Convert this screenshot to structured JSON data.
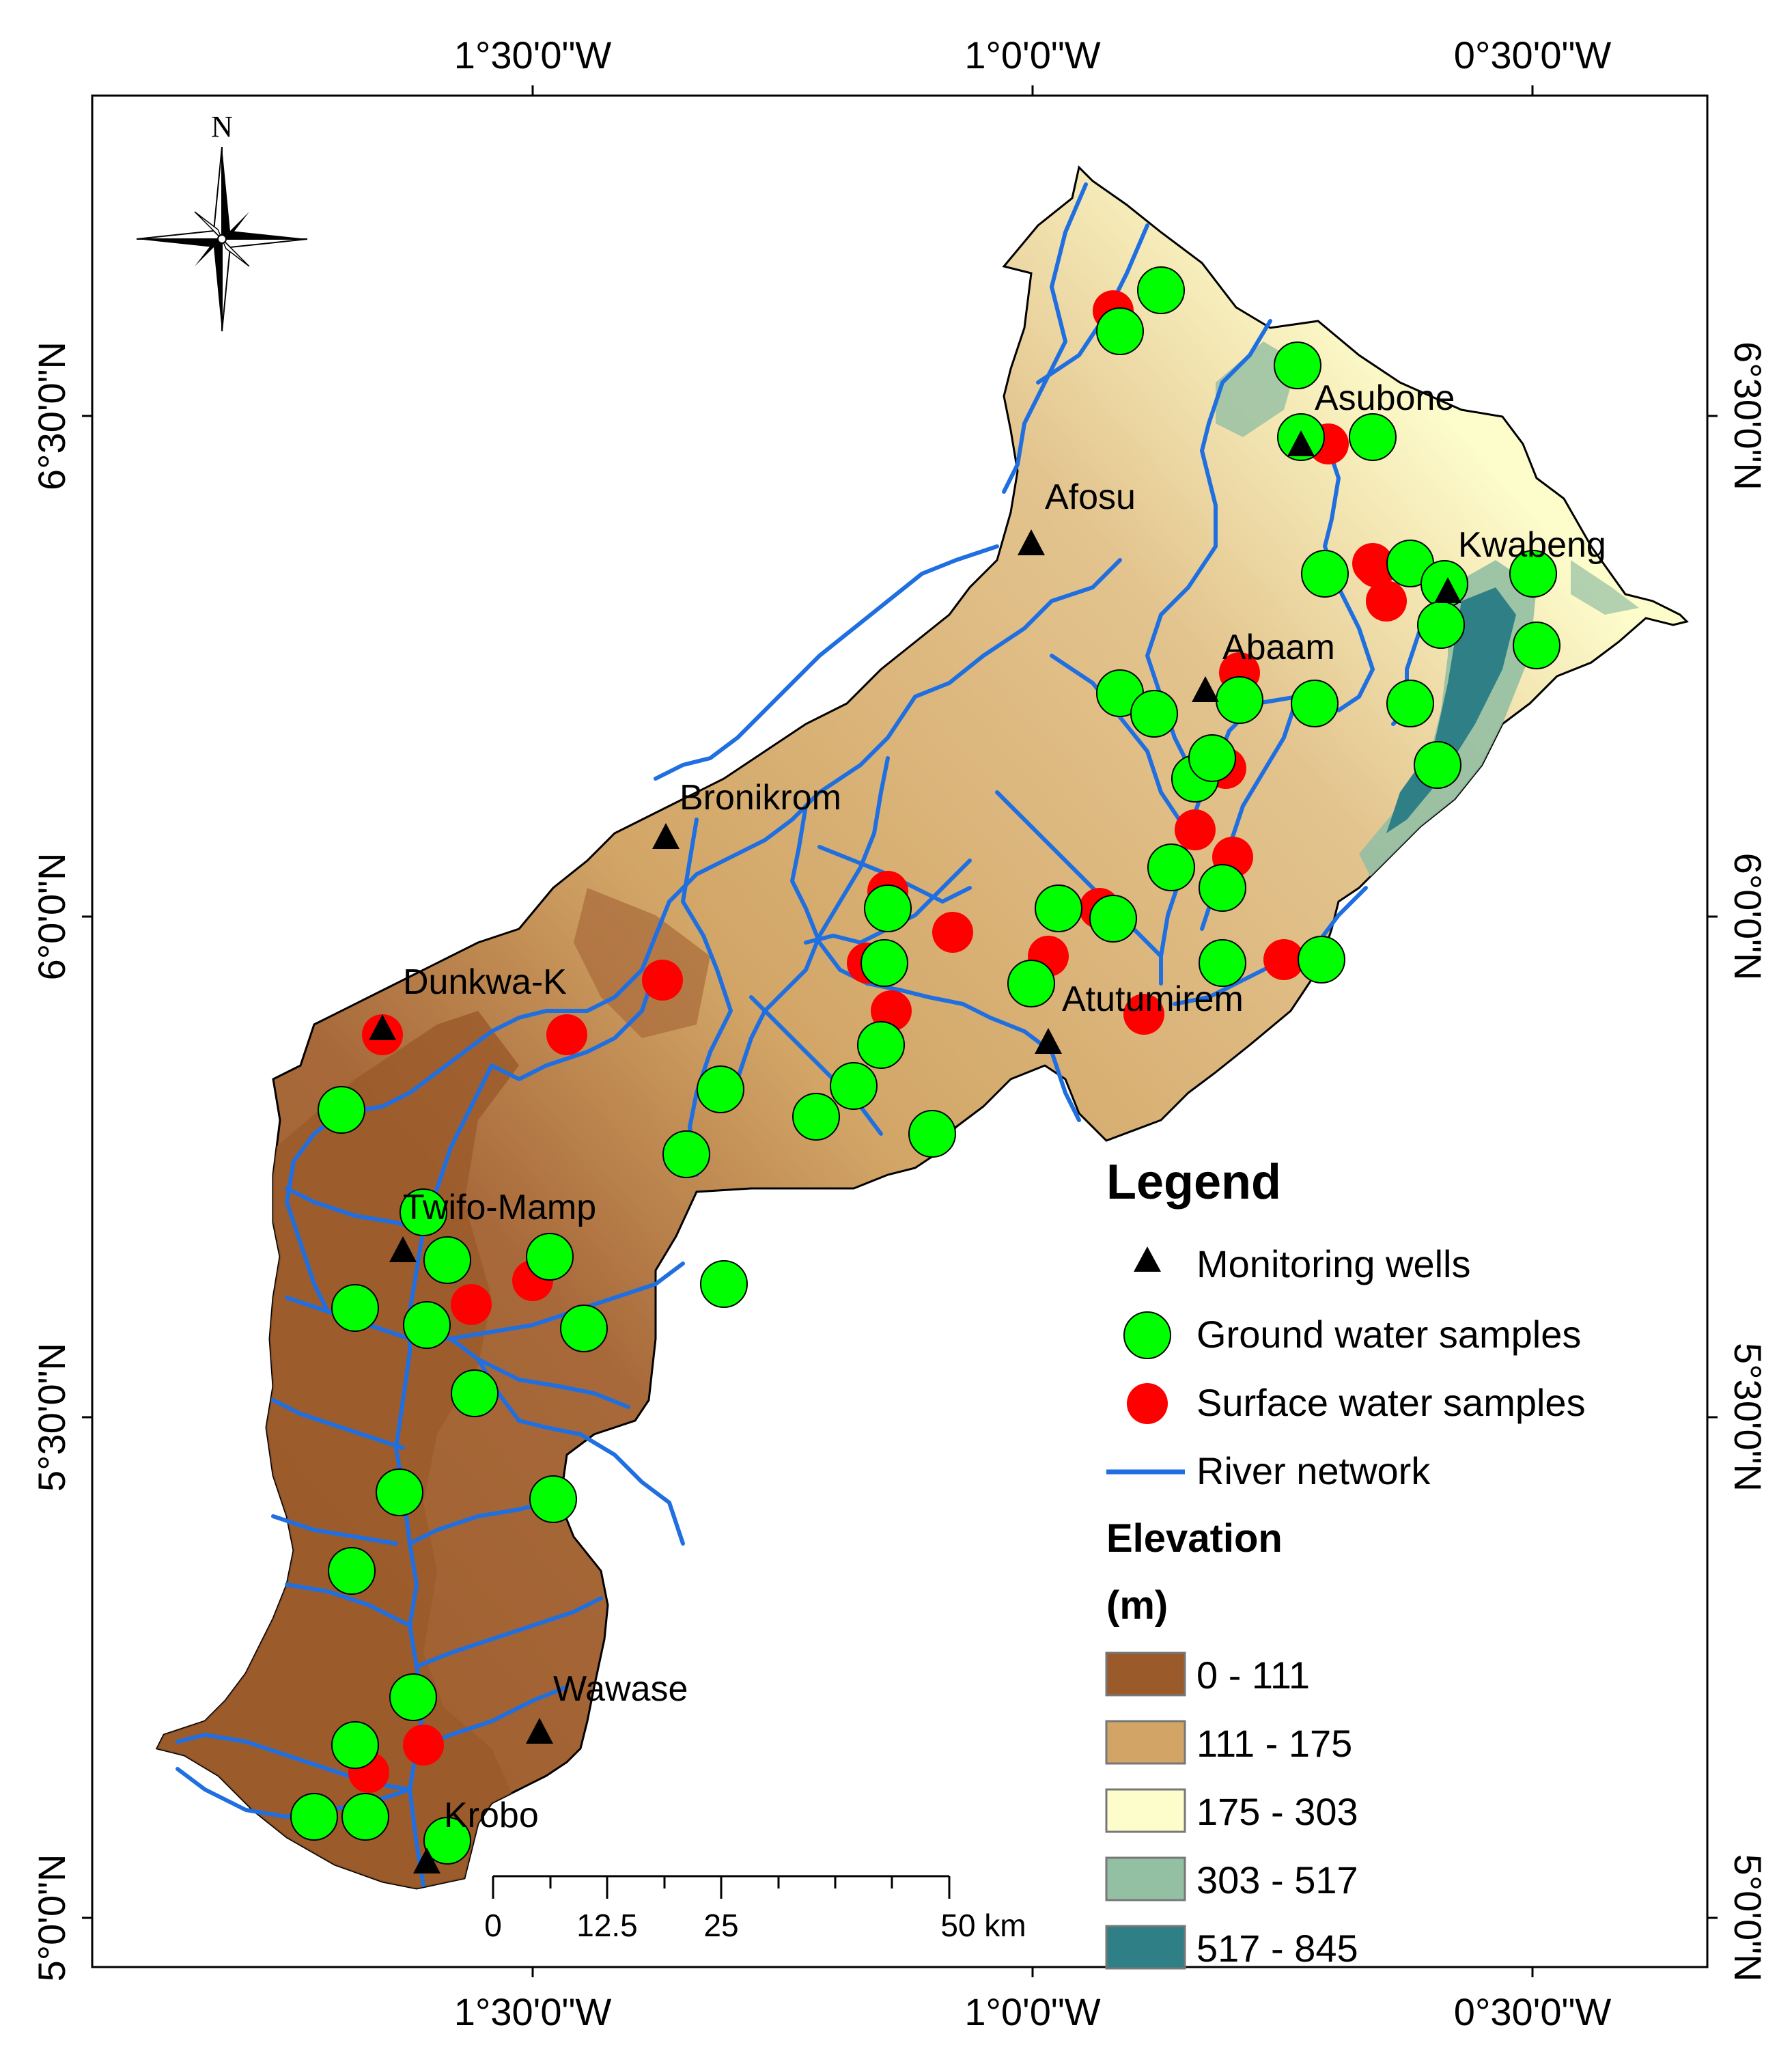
{
  "axes": {
    "top_ticks": [
      "1°30'0\"W",
      "1°0'0\"W",
      "0°30'0\"W"
    ],
    "bottom_ticks": [
      "1°30'0\"W",
      "1°0'0\"W",
      "0°30'0\"W"
    ],
    "left_ticks": [
      "6°30'0\"N",
      "6°0'0\"N",
      "5°30'0\"N",
      "5°0'0\"N"
    ],
    "right_ticks": [
      "6°30'0\"N",
      "6°0'0\"N",
      "5°30'0\"N",
      "5°0'0\"N"
    ]
  },
  "north_arrow": {
    "label": "N",
    "icon": "compass-rose-icon"
  },
  "places": [
    "Asubone",
    "Afosu",
    "Kwabeng",
    "Abaam",
    "Bronikrom",
    "Dunkwa-K",
    "Atutumirem",
    "Twifo-Mamp",
    "Wawase",
    "Krobo"
  ],
  "legend": {
    "title": "Legend",
    "monitoring_wells": "Monitoring wells",
    "ground_water": "Ground water samples",
    "surface_water": "Surface water samples",
    "river_network": "River network",
    "elevation_title": "Elevation",
    "elevation_unit": "(m)",
    "elevation_classes": [
      {
        "label": "0 - 111",
        "color": "#9b5a2a"
      },
      {
        "label": "111 - 175",
        "color": "#d2a566"
      },
      {
        "label": "175 - 303",
        "color": "#fdfccb"
      },
      {
        "label": "303 - 517",
        "color": "#93bfa3"
      },
      {
        "label": "517 - 845",
        "color": "#2f7f86"
      }
    ]
  },
  "scale_bar": {
    "labels": [
      "0",
      "12.5",
      "25",
      "50 km"
    ]
  },
  "colors": {
    "ground_water": "#00ff00",
    "surface_water": "#ff0000",
    "river": "#1f6fe0",
    "well": "#000000"
  }
}
